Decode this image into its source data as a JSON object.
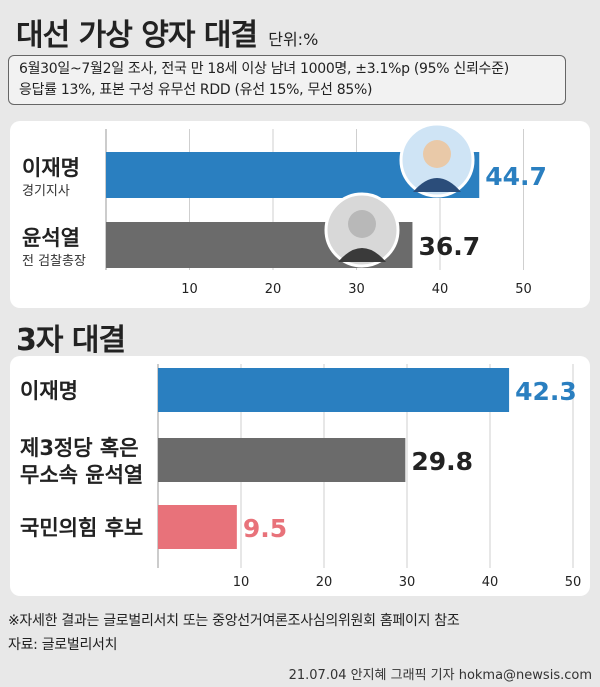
{
  "header": {
    "title": "대선 가상 양자 대결",
    "unit": "단위:%"
  },
  "survey": {
    "line1": "6월30일~7월2일 조사, 전국 만 18세 이상 남녀 1000명, ±3.1%p (95% 신뢰수준)",
    "line2": "응답률 13%, 표본 구성 유무선 RDD (유선 15%, 무선 85%)"
  },
  "section2": {
    "title": "3자 대결"
  },
  "footer": {
    "note": "※자세한 결과는 글로벌리서치 또는 중앙선거여론조사심의위원회 홈페이지 참조",
    "source": "자료: 글로벌리서치",
    "credit": "21.07.04 안지혜 그래픽 기자 hokma@newsis.com"
  },
  "colors": {
    "blue": "#2a7fc0",
    "gray": "#6b6b6b",
    "pink": "#e8727a",
    "blue_text": "#2a7fc0",
    "pink_text": "#e8727a"
  },
  "chart_data": [
    {
      "type": "bar",
      "orientation": "horizontal",
      "title": "대선 가상 양자 대결",
      "categories": [
        "이재명",
        "윤석열"
      ],
      "sublabels": [
        "경기지사",
        "전 검찰총장"
      ],
      "values": [
        44.7,
        36.7
      ],
      "value_labels": [
        "44.7",
        "36.7"
      ],
      "xlim": [
        0,
        50
      ],
      "xticks": [
        10,
        20,
        30,
        40,
        50
      ],
      "colors": [
        "#2a7fc0",
        "#6b6b6b"
      ],
      "label_colors": [
        "#2a7fc0",
        "#222222"
      ],
      "grid": true
    },
    {
      "type": "bar",
      "orientation": "horizontal",
      "title": "3자 대결",
      "categories": [
        "이재명",
        "제3정당 혹은 무소속 윤석열",
        "국민의힘 후보"
      ],
      "label_lines": [
        [
          "이재명"
        ],
        [
          "제3정당 혹은",
          "무소속 윤석열"
        ],
        [
          "국민의힘 후보"
        ]
      ],
      "values": [
        42.3,
        29.8,
        9.5
      ],
      "value_labels": [
        "42.3",
        "29.8",
        "9.5"
      ],
      "xlim": [
        0,
        50
      ],
      "xticks": [
        10,
        20,
        30,
        40,
        50
      ],
      "colors": [
        "#2a7fc0",
        "#6b6b6b",
        "#e8727a"
      ],
      "label_colors": [
        "#2a7fc0",
        "#222222",
        "#e8727a"
      ],
      "grid": true
    }
  ]
}
